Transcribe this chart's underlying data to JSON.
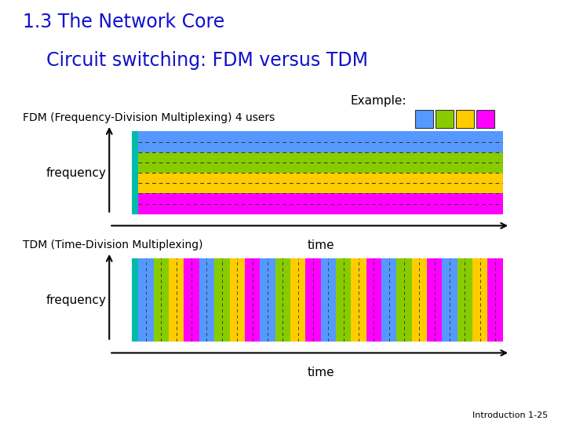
{
  "title_line1": "1.3 The Network Core",
  "title_line2": "    Circuit switching: FDM versus TDM",
  "title_color": "#1111CC",
  "title_fontsize": 17,
  "example_text": "Example:",
  "fdm_label": "FDM (Frequency-Division Multiplexing) 4 users",
  "tdm_label": "TDM (Time-Division Multiplexing)",
  "freq_label": "frequency",
  "time_label": "time",
  "footer": "Introduction 1-25",
  "colors": [
    "#5599FF",
    "#88CC00",
    "#FFCC00",
    "#FF00FF"
  ],
  "fdm_colors": [
    "#5599FF",
    "#88CC00",
    "#FFCC00",
    "#FF00FF"
  ],
  "bg_color": "#FFFFFF",
  "n_tdm_slots": 24,
  "teal_color": "#00BBAA"
}
